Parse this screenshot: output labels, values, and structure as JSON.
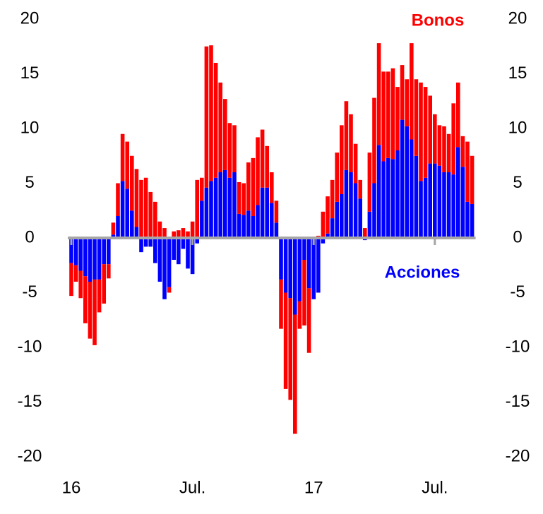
{
  "chart_data": {
    "type": "stacked_bar",
    "categories": [
      "16",
      null,
      null,
      null,
      null,
      null,
      null,
      null,
      null,
      null,
      null,
      null,
      null,
      null,
      null,
      null,
      null,
      null,
      null,
      null,
      null,
      null,
      null,
      null,
      null,
      null,
      "Jul.",
      null,
      null,
      null,
      null,
      null,
      null,
      null,
      null,
      null,
      null,
      null,
      null,
      null,
      null,
      null,
      null,
      null,
      null,
      null,
      null,
      null,
      null,
      null,
      null,
      null,
      "17",
      null,
      null,
      null,
      null,
      null,
      null,
      null,
      null,
      null,
      null,
      null,
      null,
      null,
      null,
      null,
      null,
      null,
      null,
      null,
      null,
      null,
      null,
      null,
      null,
      null,
      "Jul.",
      null,
      null,
      null,
      null,
      null,
      null,
      null,
      null
    ],
    "series": [
      {
        "name": "Acciones",
        "color": "#0000ff",
        "values": [
          -2.3,
          -2.5,
          -3,
          -3.5,
          -4,
          -3.8,
          -3.8,
          -2.4,
          -2.4,
          0.3,
          2,
          5.2,
          4.5,
          2.5,
          1,
          -1.3,
          -0.8,
          -0.8,
          -2.3,
          -4,
          -5.6,
          -4.5,
          -2,
          -2.4,
          -1,
          -2.8,
          -3.3,
          -0.5,
          3.4,
          4.6,
          5.2,
          5.5,
          6,
          6.2,
          5.5,
          6,
          2.2,
          2.1,
          2.5,
          2,
          3,
          4.6,
          4.6,
          3.2,
          1.4,
          -3.8,
          -5,
          -5.5,
          -7,
          -5.8,
          -2,
          -4.6,
          -5.6,
          -5,
          -0.5,
          0.4,
          1.8,
          3.3,
          4,
          6.2,
          6,
          5,
          3.6,
          -0.2,
          2.4,
          5,
          8.5,
          7,
          7.3,
          7.2,
          8,
          10.8,
          10.2,
          9,
          7.5,
          5.2,
          5.5,
          6.8,
          6.8,
          6.6,
          6,
          6,
          5.8,
          8.3,
          6.5,
          3.3,
          3.1
        ]
      },
      {
        "name": "Bonos",
        "color": "#ff0000",
        "values": [
          -3,
          -1.5,
          -2.5,
          -4.3,
          -5.2,
          -6,
          -3,
          -3.6,
          -1.3,
          1.1,
          3,
          4.3,
          4.3,
          5,
          5.3,
          5.3,
          5.5,
          4.2,
          3.3,
          1.5,
          0.9,
          -0.5,
          0.6,
          0.7,
          0.9,
          0.6,
          1.5,
          5.3,
          2.1,
          12.9,
          12.4,
          10.5,
          8.2,
          6.5,
          5,
          4.3,
          2.9,
          2.9,
          4.4,
          5.3,
          6.2,
          5.3,
          3.8,
          2.8,
          2,
          -4.5,
          -8.8,
          -9.3,
          -10.9,
          -2.5,
          -6,
          -5.9,
          0,
          0.2,
          2.4,
          3.4,
          3.5,
          4.5,
          6.3,
          6.3,
          5.3,
          3.6,
          1.7,
          0.9,
          5.4,
          7.8,
          9.3,
          8.2,
          7.9,
          8.3,
          5.8,
          5,
          4.3,
          8.8,
          7,
          9,
          8.3,
          6.2,
          4.5,
          3.7,
          4.2,
          3.5,
          6.5,
          5.9,
          2.8,
          5.5,
          4.4
        ]
      }
    ],
    "ylim": [
      -20,
      20
    ],
    "yticks": [
      -20,
      -15,
      -10,
      -5,
      0,
      5,
      10,
      15,
      20
    ],
    "y2lim": [
      -20,
      20
    ],
    "y2ticks": [
      -20,
      -15,
      -10,
      -5,
      0,
      5,
      10,
      15,
      20
    ]
  }
}
